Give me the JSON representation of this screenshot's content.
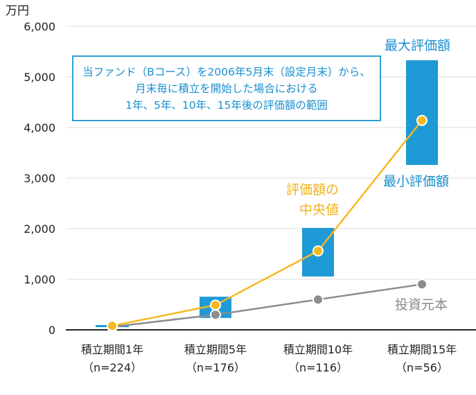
{
  "chart_data": {
    "type": "bar+line",
    "ylabel": "万円",
    "ylim": [
      0,
      6000
    ],
    "yticks": [
      "0",
      "1,000",
      "2,000",
      "3,000",
      "4,000",
      "5,000",
      "6,000"
    ],
    "ytick_values": [
      0,
      1000,
      2000,
      3000,
      4000,
      5000,
      6000
    ],
    "grid": true,
    "categories": [
      {
        "line1": "積立期間1年",
        "line2": "（n=224）"
      },
      {
        "line1": "積立期間5年",
        "line2": "（n=176）"
      },
      {
        "line1": "積立期間10年",
        "line2": "（n=116）"
      },
      {
        "line1": "積立期間15年",
        "line2": "（n=56）"
      }
    ],
    "range_bars": {
      "min": [
        55,
        235,
        1055,
        3260
      ],
      "max": [
        95,
        655,
        2015,
        5330
      ],
      "color": "#1e9ad6"
    },
    "series": [
      {
        "name": "評価額の中央値",
        "values": [
          80,
          490,
          1560,
          4140
        ],
        "color": "#f5b820"
      },
      {
        "name": "投資元本",
        "values": [
          60,
          300,
          600,
          900
        ],
        "color": "#8c8c8c"
      }
    ],
    "annotations": {
      "note_lines": [
        "当ファンド（Bコース）を2006年5月末（設定月末）から、",
        "月末毎に積立を開始した場合における",
        "1年、5年、10年、15年後の評価額の範囲"
      ],
      "max_label": "最大評価額",
      "min_label": "最小評価額",
      "median_label_1": "評価額の",
      "median_label_2": "中央値",
      "principal_label": "投資元本"
    }
  }
}
